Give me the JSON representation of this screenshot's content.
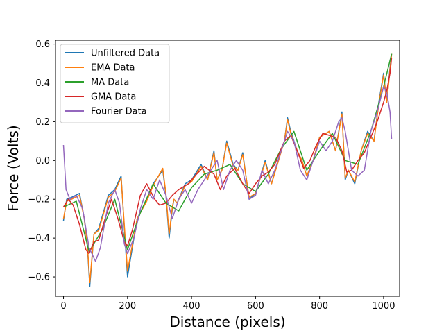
{
  "chart_data": {
    "type": "line",
    "title": "",
    "xlabel": "Distance (pixels)",
    "ylabel": "Force (Volts)",
    "xlim": [
      -25,
      1050
    ],
    "ylim": [
      -0.7,
      0.62
    ],
    "xticks": [
      0,
      200,
      400,
      600,
      800,
      1000
    ],
    "yticks": [
      -0.6,
      -0.4,
      -0.2,
      0.0,
      0.2,
      0.4,
      0.6
    ],
    "grid": false,
    "legend_position": "top-left",
    "series": [
      {
        "name": "Unfiltered Data",
        "color": "#1f77b4",
        "x": [
          0,
          10,
          25,
          50,
          65,
          75,
          82,
          95,
          110,
          140,
          160,
          180,
          192,
          200,
          210,
          230,
          260,
          280,
          310,
          320,
          330,
          340,
          345,
          355,
          380,
          400,
          430,
          450,
          470,
          480,
          495,
          510,
          530,
          545,
          560,
          580,
          600,
          630,
          650,
          670,
          690,
          700,
          710,
          730,
          745,
          760,
          780,
          800,
          830,
          850,
          870,
          880,
          890,
          910,
          930,
          950,
          970,
          985,
          1000,
          1010,
          1020,
          1025
        ],
        "y": [
          -0.31,
          -0.2,
          -0.19,
          -0.17,
          -0.3,
          -0.45,
          -0.65,
          -0.38,
          -0.35,
          -0.18,
          -0.15,
          -0.08,
          -0.4,
          -0.6,
          -0.5,
          -0.3,
          -0.2,
          -0.12,
          -0.05,
          -0.18,
          -0.4,
          -0.25,
          -0.2,
          -0.22,
          -0.12,
          -0.1,
          -0.02,
          -0.1,
          0.05,
          -0.1,
          -0.05,
          0.1,
          -0.02,
          -0.05,
          0.04,
          -0.2,
          -0.17,
          0.0,
          -0.12,
          0.0,
          0.1,
          0.22,
          0.15,
          0.05,
          0.0,
          -0.08,
          0.0,
          0.12,
          0.15,
          0.05,
          0.25,
          -0.1,
          -0.05,
          -0.12,
          0.05,
          0.15,
          0.1,
          0.3,
          0.45,
          0.3,
          0.48,
          0.55
        ]
      },
      {
        "name": "EMA Data",
        "color": "#ff7f0e",
        "x": [
          0,
          10,
          25,
          50,
          65,
          75,
          82,
          95,
          110,
          140,
          160,
          180,
          192,
          200,
          210,
          230,
          260,
          280,
          310,
          320,
          330,
          340,
          345,
          355,
          380,
          400,
          430,
          450,
          470,
          480,
          495,
          510,
          530,
          545,
          560,
          580,
          600,
          630,
          650,
          670,
          690,
          700,
          710,
          730,
          745,
          760,
          780,
          800,
          830,
          850,
          870,
          880,
          890,
          910,
          930,
          950,
          970,
          985,
          1000,
          1010,
          1020,
          1025
        ],
        "y": [
          -0.3,
          -0.21,
          -0.2,
          -0.18,
          -0.3,
          -0.44,
          -0.63,
          -0.38,
          -0.36,
          -0.19,
          -0.16,
          -0.09,
          -0.38,
          -0.57,
          -0.48,
          -0.3,
          -0.21,
          -0.13,
          -0.04,
          -0.17,
          -0.38,
          -0.24,
          -0.2,
          -0.22,
          -0.13,
          -0.11,
          -0.03,
          -0.1,
          0.04,
          -0.1,
          -0.05,
          0.09,
          -0.03,
          -0.05,
          0.03,
          -0.19,
          -0.17,
          -0.01,
          -0.12,
          -0.01,
          0.1,
          0.21,
          0.14,
          0.05,
          0.0,
          -0.08,
          0.0,
          0.12,
          0.15,
          0.05,
          0.24,
          -0.09,
          -0.05,
          -0.11,
          0.05,
          0.14,
          0.1,
          0.29,
          0.44,
          0.3,
          0.47,
          0.55
        ]
      },
      {
        "name": "MA Data",
        "color": "#2ca02c",
        "x": [
          0,
          40,
          80,
          120,
          160,
          200,
          240,
          280,
          320,
          360,
          400,
          440,
          480,
          520,
          560,
          600,
          640,
          680,
          720,
          760,
          800,
          840,
          880,
          920,
          960,
          1000,
          1025
        ],
        "y": [
          -0.24,
          -0.21,
          -0.47,
          -0.36,
          -0.2,
          -0.46,
          -0.27,
          -0.12,
          -0.22,
          -0.26,
          -0.14,
          -0.07,
          -0.05,
          -0.02,
          -0.12,
          -0.16,
          -0.07,
          0.06,
          0.15,
          -0.05,
          0.05,
          0.14,
          0.0,
          -0.02,
          0.15,
          0.38,
          0.55
        ]
      },
      {
        "name": "GMA Data",
        "color": "#d62728",
        "x": [
          0,
          15,
          30,
          50,
          70,
          80,
          95,
          110,
          130,
          150,
          170,
          190,
          200,
          215,
          240,
          260,
          285,
          300,
          320,
          340,
          360,
          390,
          410,
          440,
          470,
          490,
          510,
          535,
          560,
          580,
          600,
          620,
          640,
          660,
          690,
          710,
          730,
          750,
          770,
          790,
          810,
          830,
          850,
          870,
          885,
          900,
          920,
          940,
          960,
          980,
          1000,
          1010,
          1020,
          1025
        ],
        "y": [
          -0.24,
          -0.2,
          -0.23,
          -0.33,
          -0.46,
          -0.48,
          -0.42,
          -0.41,
          -0.3,
          -0.2,
          -0.3,
          -0.42,
          -0.44,
          -0.36,
          -0.18,
          -0.12,
          -0.2,
          -0.23,
          -0.22,
          -0.18,
          -0.15,
          -0.12,
          -0.08,
          -0.03,
          -0.07,
          -0.15,
          -0.08,
          -0.04,
          -0.12,
          -0.17,
          -0.12,
          -0.08,
          -0.06,
          -0.02,
          0.1,
          0.13,
          0.05,
          -0.04,
          0.0,
          0.08,
          0.14,
          0.13,
          0.12,
          0.05,
          -0.06,
          -0.05,
          0.0,
          0.04,
          0.12,
          0.2,
          0.3,
          0.36,
          0.45,
          0.53
        ]
      },
      {
        "name": "Fourier Data",
        "color": "#9467bd",
        "x": [
          0,
          8,
          20,
          40,
          60,
          80,
          100,
          115,
          140,
          160,
          175,
          190,
          200,
          220,
          240,
          260,
          280,
          300,
          320,
          340,
          360,
          380,
          400,
          420,
          440,
          460,
          480,
          500,
          520,
          540,
          560,
          580,
          600,
          620,
          640,
          660,
          680,
          700,
          720,
          740,
          760,
          780,
          800,
          820,
          840,
          860,
          870,
          880,
          900,
          920,
          940,
          960,
          980,
          1000,
          1010,
          1020,
          1025
        ],
        "y": [
          0.08,
          -0.15,
          -0.2,
          -0.18,
          -0.25,
          -0.45,
          -0.52,
          -0.45,
          -0.22,
          -0.15,
          -0.22,
          -0.43,
          -0.48,
          -0.4,
          -0.25,
          -0.15,
          -0.2,
          -0.1,
          -0.18,
          -0.3,
          -0.2,
          -0.15,
          -0.22,
          -0.15,
          -0.1,
          -0.05,
          0.0,
          -0.15,
          -0.05,
          0.0,
          -0.05,
          -0.2,
          -0.18,
          -0.05,
          -0.12,
          -0.05,
          0.05,
          0.15,
          0.1,
          -0.05,
          -0.1,
          0.0,
          0.1,
          0.05,
          0.1,
          0.2,
          0.22,
          0.15,
          -0.05,
          -0.08,
          -0.05,
          0.15,
          0.25,
          0.38,
          0.35,
          0.25,
          0.11
        ]
      }
    ]
  }
}
